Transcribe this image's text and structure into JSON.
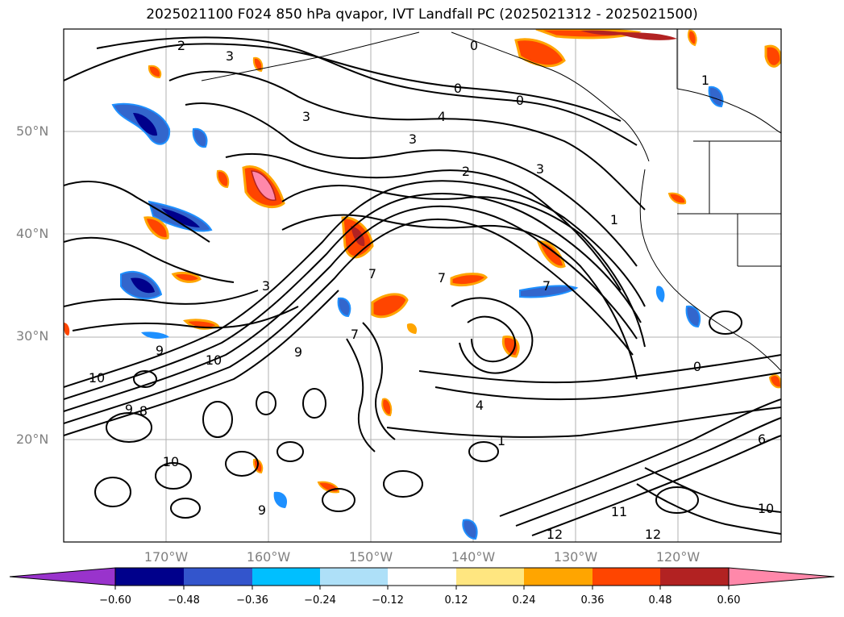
{
  "title": "2025021100 F024 850 hPa qvapor, IVT Landfall PC (2025021312 - 2025021500)",
  "lat_labels": [
    "50°N",
    "40°N",
    "30°N",
    "20°N"
  ],
  "lon_labels": [
    "170°W",
    "160°W",
    "150°W",
    "140°W",
    "130°W",
    "120°W"
  ],
  "contour_labels": [
    "2",
    "3",
    "3",
    "0",
    "0",
    "4",
    "0",
    "3",
    "2",
    "3",
    "1",
    "3",
    "7",
    "7",
    "7",
    "7",
    "9",
    "10",
    "10",
    "9",
    "8",
    "9",
    "10",
    "9",
    "4",
    "0",
    "1",
    "6",
    "10",
    "12",
    "12",
    "11",
    "1"
  ],
  "colorbar": {
    "ticks": [
      "−0.60",
      "−0.48",
      "−0.36",
      "−0.24",
      "−0.12",
      "0.12",
      "0.24",
      "0.36",
      "0.48",
      "0.60"
    ],
    "colors": [
      "#9933cc",
      "#00008b",
      "#3355cc",
      "#00bfff",
      "#aee0f8",
      "#ffffff",
      "#ffe680",
      "#ffa500",
      "#ff4500",
      "#b22222",
      "#ff88aa"
    ]
  },
  "fill_colors": {
    "neg_strong": "#00008b",
    "neg_mid": "#3366cc",
    "neg_light": "#1e90ff",
    "pos_light": "#ffd700",
    "pos_mid": "#ff4500",
    "pos_strong": "#b22222",
    "pos_max": "#ff88aa"
  }
}
